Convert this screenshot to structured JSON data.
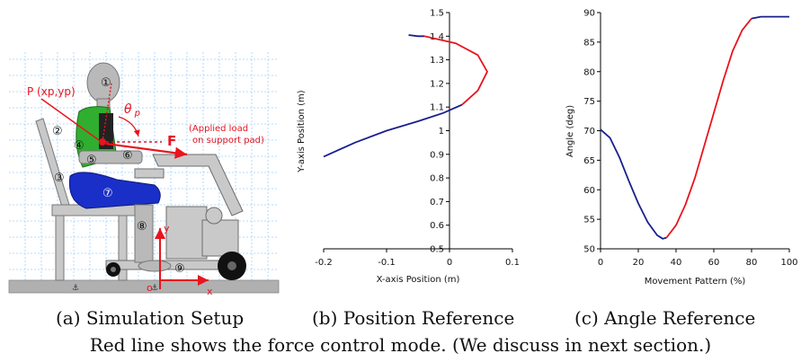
{
  "setup": {
    "point_label": "P (xp,yp)",
    "angle_label": "θ",
    "angle_sub": "p",
    "force_label": "F",
    "load_line1": "(Applied load",
    "load_line2": "on support pad)",
    "axis_y": "y",
    "axis_x": "x",
    "origin": "o",
    "circled_numbers": [
      "①",
      "②",
      "③",
      "④",
      "⑤",
      "⑥",
      "⑦",
      "⑧",
      "⑨"
    ],
    "colors": {
      "body_green": "#2fae2f",
      "body_blue": "#1a2fc8",
      "dummy_gray": "#b9b9b9",
      "force_red": "#e8141e",
      "grid_blue": "#9fd0ff"
    }
  },
  "chart_data": [
    {
      "type": "line",
      "title": "",
      "xlabel": "X-axis Position (m)",
      "ylabel": "Y-axis Position (m)",
      "xlim": [
        -0.2,
        0.1
      ],
      "ylim": [
        0.5,
        1.5
      ],
      "xticks": [
        "-0.2",
        "-0.1",
        "0",
        "0.1"
      ],
      "yticks": [
        "0.5",
        "0.6",
        "0.7",
        "0.8",
        "0.9",
        "1",
        "1.1",
        "1.2",
        "1.3",
        "1.4",
        "1.5"
      ],
      "series": [
        {
          "color": "#1a1f8c",
          "points": [
            [
              -0.2,
              0.89
            ],
            [
              -0.15,
              0.95
            ],
            [
              -0.1,
              1.0
            ],
            [
              -0.05,
              1.04
            ],
            [
              -0.01,
              1.075
            ],
            [
              0.02,
              1.11
            ]
          ]
        },
        {
          "color": "#e8141e",
          "points": [
            [
              0.02,
              1.11
            ],
            [
              0.045,
              1.17
            ],
            [
              0.06,
              1.25
            ],
            [
              0.045,
              1.32
            ],
            [
              0.01,
              1.37
            ],
            [
              -0.04,
              1.4
            ]
          ]
        },
        {
          "color": "#1a1f8c",
          "points": [
            [
              -0.04,
              1.4
            ],
            [
              -0.05,
              1.4
            ],
            [
              -0.065,
              1.405
            ]
          ]
        }
      ]
    },
    {
      "type": "line",
      "title": "",
      "xlabel": "Movement Pattern (%)",
      "ylabel": "Angle (deg)",
      "xlim": [
        0,
        100
      ],
      "ylim": [
        50,
        90
      ],
      "xticks": [
        "0",
        "20",
        "40",
        "60",
        "80",
        "100"
      ],
      "yticks": [
        "50",
        "55",
        "60",
        "65",
        "70",
        "75",
        "80",
        "85",
        "90"
      ],
      "series": [
        {
          "color": "#1a1f8c",
          "points": [
            [
              0,
              70.2
            ],
            [
              5,
              68.8
            ],
            [
              10,
              65.5
            ],
            [
              15,
              61.5
            ],
            [
              20,
              57.7
            ],
            [
              25,
              54.5
            ],
            [
              30,
              52.3
            ],
            [
              33,
              51.7
            ],
            [
              35,
              51.9
            ]
          ]
        },
        {
          "color": "#e8141e",
          "points": [
            [
              35,
              51.9
            ],
            [
              40,
              54
            ],
            [
              45,
              57.5
            ],
            [
              50,
              62
            ],
            [
              55,
              67.5
            ],
            [
              60,
              73
            ],
            [
              65,
              78.5
            ],
            [
              70,
              83.5
            ],
            [
              75,
              87
            ],
            [
              80,
              89
            ]
          ]
        },
        {
          "color": "#1a1f8c",
          "points": [
            [
              80,
              89
            ],
            [
              85,
              89.3
            ],
            [
              100,
              89.3
            ]
          ]
        }
      ]
    }
  ],
  "captions": {
    "a": "(a) Simulation Setup",
    "b": "(b) Position Reference",
    "c": "(c) Angle Reference",
    "note": "Red line shows the force control mode. (We discuss in next section.)"
  }
}
